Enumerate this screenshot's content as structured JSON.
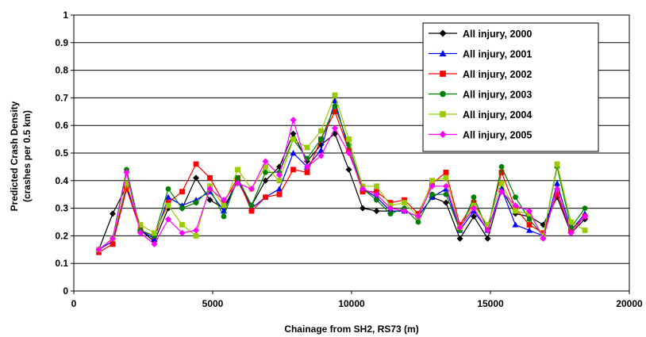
{
  "chart_data": {
    "type": "line",
    "title": "",
    "xlabel": "Chainage from SH2, RS73 (m)",
    "ylabel": [
      "Predicted Crash Density",
      "(crashes per 0.5 km)"
    ],
    "xlim": [
      0,
      20000
    ],
    "ylim": [
      0,
      1
    ],
    "xticks": [
      0,
      5000,
      10000,
      15000,
      20000
    ],
    "yticks": [
      0,
      0.1,
      0.2,
      0.3,
      0.4,
      0.5,
      0.6,
      0.7,
      0.8,
      0.9,
      1
    ],
    "xtick_labels": [
      "0",
      "5000",
      "10000",
      "15000",
      "20000"
    ],
    "ytick_labels": [
      "0",
      "0.1",
      "0.2",
      "0.3",
      "0.4",
      "0.5",
      "0.6",
      "0.7",
      "0.8",
      "0.9",
      "1"
    ],
    "grid": "horizontal",
    "legend_position": "top-right",
    "x": [
      900,
      1400,
      1900,
      2400,
      2900,
      3400,
      3900,
      4400,
      4900,
      5400,
      5900,
      6400,
      6900,
      7400,
      7900,
      8400,
      8900,
      9400,
      9900,
      10400,
      10900,
      11400,
      11900,
      12400,
      12900,
      13400,
      13900,
      14400,
      14900,
      15400,
      15900,
      16400,
      16900,
      17400,
      17900,
      18400
    ],
    "series": [
      {
        "name": "All injury, 2000",
        "color": "#000000",
        "marker": "diamond",
        "values": [
          0.15,
          0.28,
          0.38,
          0.22,
          0.18,
          0.3,
          0.3,
          0.41,
          0.33,
          0.3,
          0.4,
          0.31,
          0.4,
          0.45,
          0.57,
          0.47,
          0.53,
          0.57,
          0.44,
          0.3,
          0.29,
          0.29,
          0.29,
          0.27,
          0.34,
          0.32,
          0.19,
          0.27,
          0.19,
          0.37,
          0.28,
          0.27,
          0.24,
          0.34,
          0.21,
          0.26
        ]
      },
      {
        "name": "All injury, 2001",
        "color": "#0000ff",
        "marker": "triangle",
        "values": [
          0.15,
          0.18,
          0.38,
          0.22,
          0.19,
          0.34,
          0.31,
          0.33,
          0.36,
          0.29,
          0.4,
          0.3,
          0.34,
          0.37,
          0.5,
          0.45,
          0.51,
          0.69,
          0.51,
          0.37,
          0.34,
          0.29,
          0.29,
          0.27,
          0.34,
          0.37,
          0.22,
          0.29,
          0.22,
          0.37,
          0.24,
          0.22,
          0.2,
          0.39,
          0.22,
          0.28
        ]
      },
      {
        "name": "All injury, 2002",
        "color": "#ff0000",
        "marker": "square",
        "values": [
          0.14,
          0.17,
          0.37,
          0.22,
          0.2,
          0.32,
          0.36,
          0.46,
          0.41,
          0.32,
          0.41,
          0.29,
          0.34,
          0.35,
          0.44,
          0.43,
          0.55,
          0.65,
          0.51,
          0.36,
          0.36,
          0.32,
          0.33,
          0.28,
          0.39,
          0.43,
          0.24,
          0.32,
          0.23,
          0.43,
          0.3,
          0.24,
          0.21,
          0.35,
          0.22,
          0.27
        ]
      },
      {
        "name": "All injury, 2003",
        "color": "#008000",
        "marker": "circle",
        "values": [
          0.15,
          0.19,
          0.44,
          0.22,
          0.2,
          0.37,
          0.3,
          0.32,
          0.37,
          0.27,
          0.41,
          0.31,
          0.43,
          0.43,
          0.55,
          0.48,
          0.55,
          0.67,
          0.53,
          0.37,
          0.33,
          0.28,
          0.3,
          0.25,
          0.35,
          0.35,
          0.22,
          0.34,
          0.22,
          0.45,
          0.34,
          0.26,
          0.2,
          0.45,
          0.23,
          0.3
        ]
      },
      {
        "name": "All injury, 2004",
        "color": "#99cc00",
        "marker": "square",
        "values": [
          0.15,
          0.19,
          0.39,
          0.24,
          0.21,
          0.31,
          0.24,
          0.2,
          0.38,
          0.31,
          0.44,
          0.37,
          0.45,
          0.4,
          0.55,
          0.52,
          0.58,
          0.71,
          0.55,
          0.38,
          0.38,
          0.31,
          0.32,
          0.27,
          0.4,
          0.41,
          0.23,
          0.31,
          0.24,
          0.39,
          0.29,
          0.28,
          0.2,
          0.46,
          0.25,
          0.22
        ]
      },
      {
        "name": "All injury, 2005",
        "color": "#ff00ff",
        "marker": "diamond",
        "values": [
          0.15,
          0.19,
          0.43,
          0.21,
          0.17,
          0.26,
          0.21,
          0.22,
          0.37,
          0.33,
          0.39,
          0.37,
          0.47,
          0.42,
          0.62,
          0.45,
          0.49,
          0.59,
          0.5,
          0.37,
          0.35,
          0.3,
          0.29,
          0.27,
          0.38,
          0.38,
          0.23,
          0.3,
          0.22,
          0.36,
          0.31,
          0.29,
          0.19,
          0.37,
          0.21,
          0.27
        ]
      }
    ]
  }
}
